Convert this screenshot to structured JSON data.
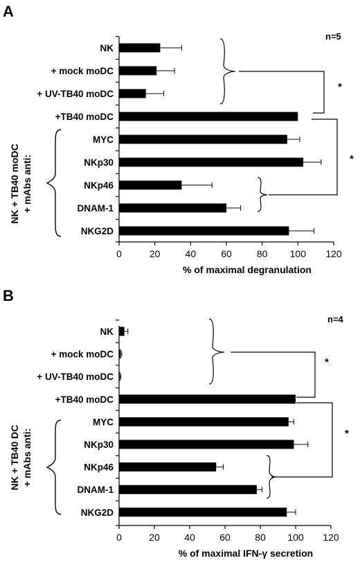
{
  "panels": [
    {
      "letter": "A",
      "n_label": "n=5",
      "side_label_lines": [
        "NK + TB40 moDC",
        "+ mAbs anti:"
      ],
      "significance": [
        "*",
        "*"
      ]
    },
    {
      "letter": "B",
      "n_label": "n=4",
      "side_label_lines": [
        "NK + TB40 DC",
        "+ mAbs anti:"
      ],
      "significance": [
        "*",
        "*"
      ]
    }
  ],
  "chart_data": [
    {
      "type": "bar",
      "orientation": "horizontal",
      "categories": [
        "NK",
        "+ mock moDC",
        "+ UV-TB40 moDC",
        "+TB40 moDC",
        "MYC",
        "NKp30",
        "NKp46",
        "DNAM-1",
        "NKG2D"
      ],
      "values": [
        23,
        21,
        15,
        100,
        94,
        103,
        35,
        60,
        95
      ],
      "errors": [
        12,
        10,
        10,
        0,
        7,
        10,
        17,
        8,
        14
      ],
      "xlabel": "% of maximal degranulation",
      "xlim": [
        0,
        120
      ],
      "xticks": [
        0,
        20,
        40,
        60,
        80,
        100,
        120
      ]
    },
    {
      "type": "bar",
      "orientation": "horizontal",
      "categories": [
        "NK",
        "+ mock moDC",
        "+ UV-TB40 moDC",
        "+TB40 moDC",
        "MYC",
        "NKp30",
        "NKp46",
        "DNAM-1",
        "NKG2D"
      ],
      "values": [
        3,
        1,
        0.5,
        100,
        96,
        99,
        55,
        78,
        95
      ],
      "errors": [
        2,
        0.5,
        0.5,
        0,
        3,
        8,
        4,
        3,
        5
      ],
      "xlabel": "% of maximal IFN-γ secretion",
      "xlim": [
        0,
        120
      ],
      "xticks": [
        0,
        20,
        40,
        60,
        80,
        100,
        120
      ]
    }
  ]
}
